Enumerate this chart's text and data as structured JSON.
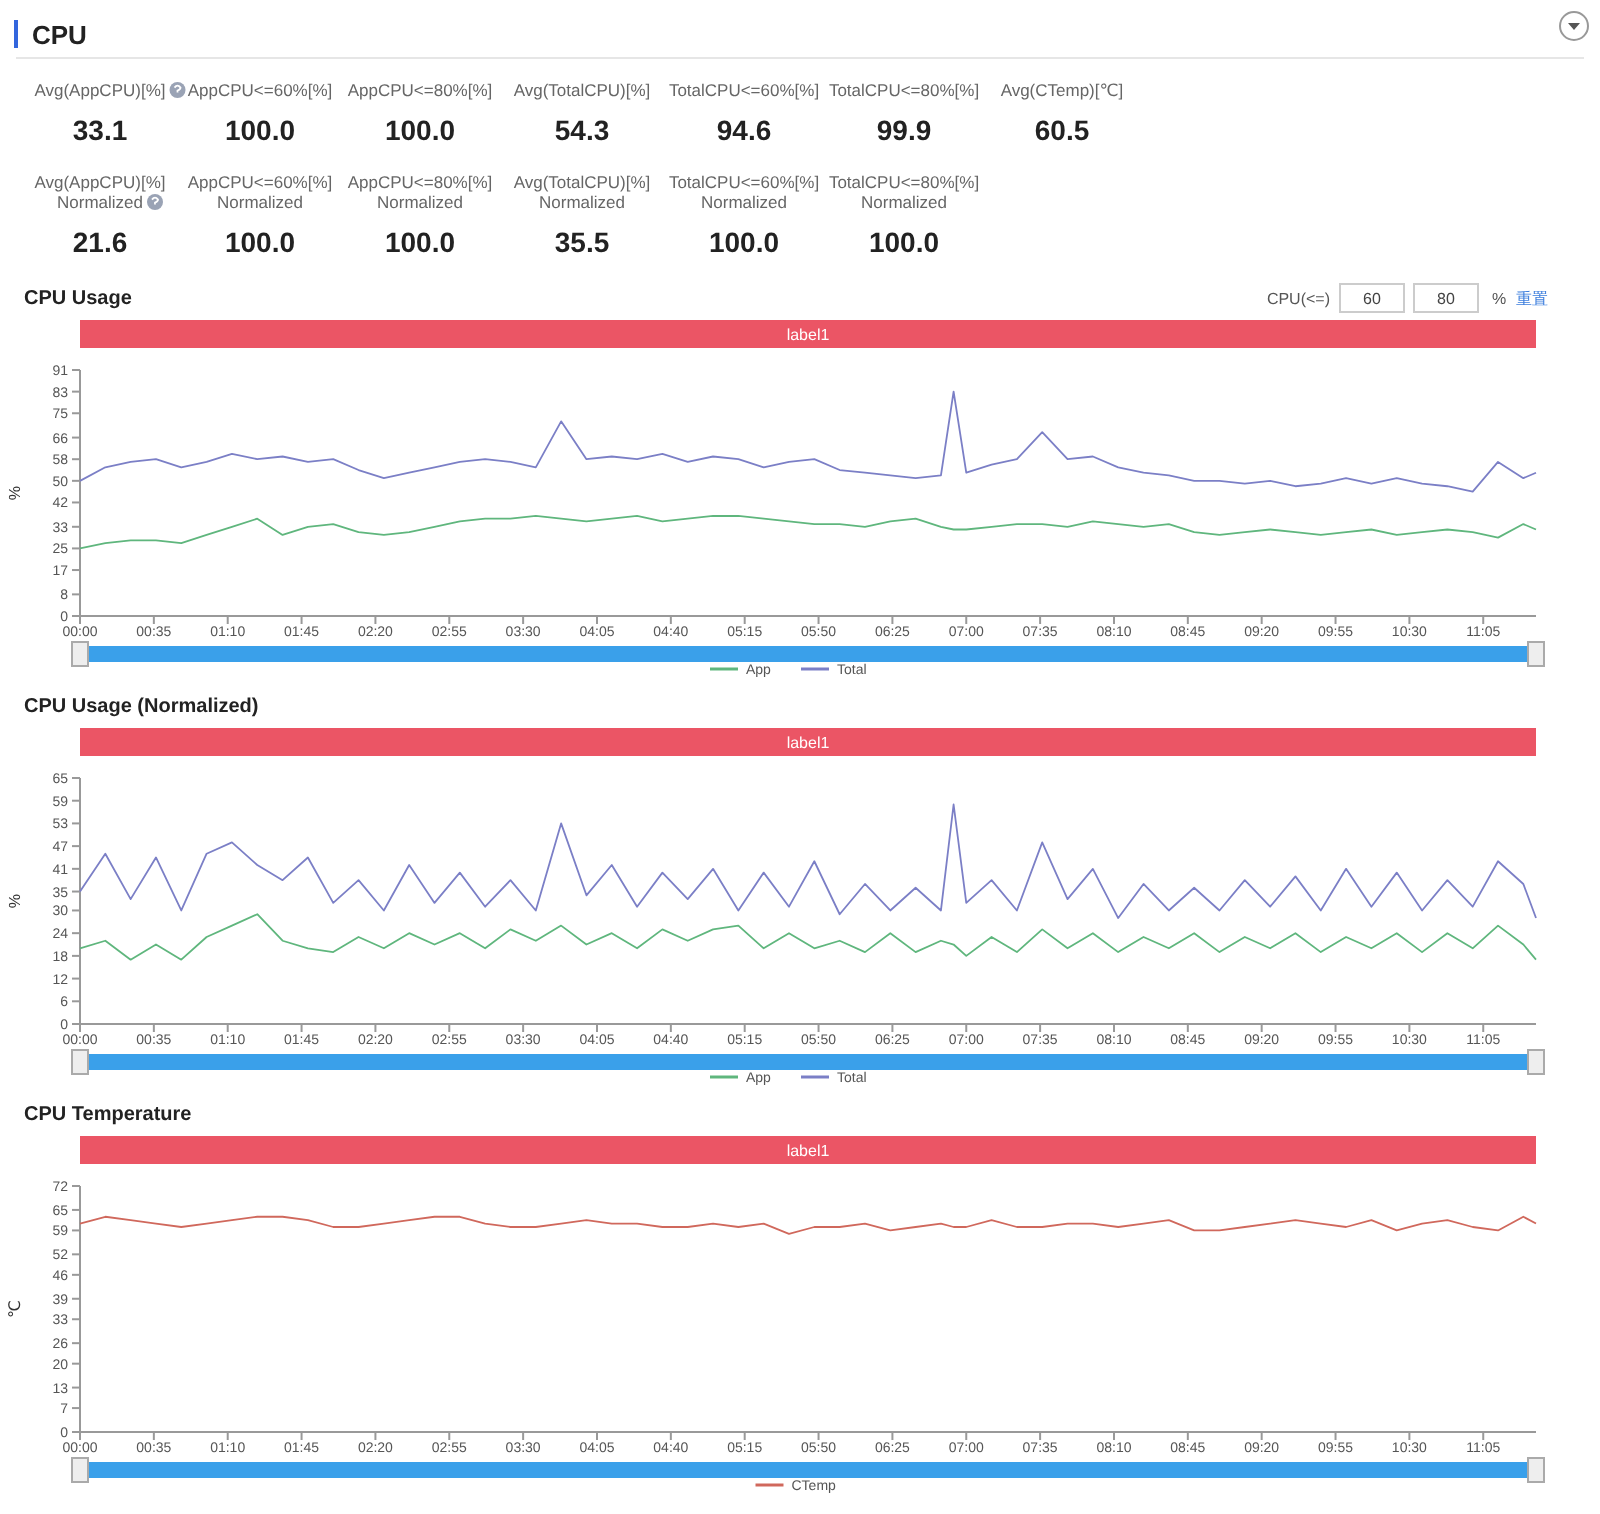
{
  "chart_data": [
    {
      "type": "other",
      "title": "CPU",
      "annotations": [
        "Avg(AppCPU)[%]",
        "33.1",
        "AppCPU<=60%[%]",
        "100.0",
        "AppCPU<=80%[%]",
        "100.0",
        "Avg(TotalCPU)[%]",
        "54.3",
        "TotalCPU<=60%[%]",
        "94.6",
        "TotalCPU<=80%[%]",
        "99.9",
        "Avg(CTemp)[℃]",
        "60.5",
        "Avg(AppCPU)[%]\nNormalized",
        "21.6",
        "AppCPU<=60%[%]\nNormalized",
        "100.0",
        "AppCPU<=80%[%]\nNormalized",
        "100.0",
        "Avg(TotalCPU)[%]\nNormalized",
        "35.5",
        "TotalCPU<=60%[%]\nNormalized",
        "100.0",
        "TotalCPU<=80%[%]\nNormalized",
        "100.0"
      ]
    },
    {
      "type": "line",
      "title": "CPU Usage",
      "ylabel": "%",
      "legend": "bottom",
      "annotations": [
        "label1",
        "CPU(<=)",
        "60",
        "80",
        "%",
        "重置"
      ],
      "xlim": [
        0,
        11.5
      ],
      "xticks": [
        {
          "value": 0,
          "label": "00:00"
        },
        {
          "value": 0.5833,
          "label": "00:35"
        },
        {
          "value": 1.1667,
          "label": "01:10"
        },
        {
          "value": 1.75,
          "label": "01:45"
        },
        {
          "value": 2.3333,
          "label": "02:20"
        },
        {
          "value": 2.9167,
          "label": "02:55"
        },
        {
          "value": 3.5,
          "label": "03:30"
        },
        {
          "value": 4.0833,
          "label": "04:05"
        },
        {
          "value": 4.6667,
          "label": "04:40"
        },
        {
          "value": 5.25,
          "label": "05:15"
        },
        {
          "value": 5.8333,
          "label": "05:50"
        },
        {
          "value": 6.4167,
          "label": "06:25"
        },
        {
          "value": 7,
          "label": "07:00"
        },
        {
          "value": 7.5833,
          "label": "07:35"
        },
        {
          "value": 8.1667,
          "label": "08:10"
        },
        {
          "value": 8.75,
          "label": "08:45"
        },
        {
          "value": 9.3333,
          "label": "09:20"
        },
        {
          "value": 9.9167,
          "label": "09:55"
        },
        {
          "value": 10.5,
          "label": "10:30"
        },
        {
          "value": 11.0833,
          "label": "11:05"
        }
      ],
      "ylim": [
        0,
        91
      ],
      "yticks": [
        0,
        8,
        17,
        25,
        33,
        42,
        50,
        58,
        66,
        75,
        83,
        91
      ],
      "x": [
        0,
        0.2,
        0.4,
        0.6,
        0.8,
        1,
        1.2,
        1.4,
        1.6,
        1.8,
        2,
        2.2,
        2.4,
        2.6,
        2.8,
        3,
        3.2,
        3.4,
        3.6,
        3.8,
        4,
        4.2,
        4.4,
        4.6,
        4.8,
        5,
        5.2,
        5.4,
        5.6,
        5.8,
        6,
        6.2,
        6.4,
        6.6,
        6.8,
        6.9,
        7,
        7.2,
        7.4,
        7.6,
        7.8,
        8,
        8.2,
        8.4,
        8.6,
        8.8,
        9,
        9.2,
        9.4,
        9.6,
        9.8,
        10,
        10.2,
        10.4,
        10.6,
        10.8,
        11,
        11.2,
        11.4,
        11.5
      ],
      "series": [
        {
          "name": "App",
          "color": "#5fb67d",
          "values": [
            25,
            27,
            28,
            28,
            27,
            30,
            33,
            36,
            30,
            33,
            34,
            31,
            30,
            31,
            33,
            35,
            36,
            36,
            37,
            36,
            35,
            36,
            37,
            35,
            36,
            37,
            37,
            36,
            35,
            34,
            34,
            33,
            35,
            36,
            33,
            32,
            32,
            33,
            34,
            34,
            33,
            35,
            34,
            33,
            34,
            31,
            30,
            31,
            32,
            31,
            30,
            31,
            32,
            30,
            31,
            32,
            31,
            29,
            34,
            32
          ]
        },
        {
          "name": "Total",
          "color": "#7b7fc6",
          "values": [
            50,
            55,
            57,
            58,
            55,
            57,
            60,
            58,
            59,
            57,
            58,
            54,
            51,
            53,
            55,
            57,
            58,
            57,
            55,
            72,
            58,
            59,
            58,
            60,
            57,
            59,
            58,
            55,
            57,
            58,
            54,
            53,
            52,
            51,
            52,
            83,
            53,
            56,
            58,
            68,
            58,
            59,
            55,
            53,
            52,
            50,
            50,
            49,
            50,
            48,
            49,
            51,
            49,
            51,
            49,
            48,
            46,
            57,
            51,
            53
          ]
        }
      ]
    },
    {
      "type": "line",
      "title": "CPU Usage (Normalized)",
      "ylabel": "%",
      "legend": "bottom",
      "annotations": [
        "label1"
      ],
      "xlim": [
        0,
        11.5
      ],
      "xticks": [
        {
          "value": 0,
          "label": "00:00"
        },
        {
          "value": 0.5833,
          "label": "00:35"
        },
        {
          "value": 1.1667,
          "label": "01:10"
        },
        {
          "value": 1.75,
          "label": "01:45"
        },
        {
          "value": 2.3333,
          "label": "02:20"
        },
        {
          "value": 2.9167,
          "label": "02:55"
        },
        {
          "value": 3.5,
          "label": "03:30"
        },
        {
          "value": 4.0833,
          "label": "04:05"
        },
        {
          "value": 4.6667,
          "label": "04:40"
        },
        {
          "value": 5.25,
          "label": "05:15"
        },
        {
          "value": 5.8333,
          "label": "05:50"
        },
        {
          "value": 6.4167,
          "label": "06:25"
        },
        {
          "value": 7,
          "label": "07:00"
        },
        {
          "value": 7.5833,
          "label": "07:35"
        },
        {
          "value": 8.1667,
          "label": "08:10"
        },
        {
          "value": 8.75,
          "label": "08:45"
        },
        {
          "value": 9.3333,
          "label": "09:20"
        },
        {
          "value": 9.9167,
          "label": "09:55"
        },
        {
          "value": 10.5,
          "label": "10:30"
        },
        {
          "value": 11.0833,
          "label": "11:05"
        }
      ],
      "ylim": [
        0,
        65
      ],
      "yticks": [
        0,
        6,
        12,
        18,
        24,
        30,
        35,
        41,
        47,
        53,
        59,
        65
      ],
      "x": [
        0,
        0.2,
        0.4,
        0.6,
        0.8,
        1,
        1.2,
        1.4,
        1.6,
        1.8,
        2,
        2.2,
        2.4,
        2.6,
        2.8,
        3,
        3.2,
        3.4,
        3.6,
        3.8,
        4,
        4.2,
        4.4,
        4.6,
        4.8,
        5,
        5.2,
        5.4,
        5.6,
        5.8,
        6,
        6.2,
        6.4,
        6.6,
        6.8,
        6.9,
        7,
        7.2,
        7.4,
        7.6,
        7.8,
        8,
        8.2,
        8.4,
        8.6,
        8.8,
        9,
        9.2,
        9.4,
        9.6,
        9.8,
        10,
        10.2,
        10.4,
        10.6,
        10.8,
        11,
        11.2,
        11.4,
        11.5
      ],
      "series": [
        {
          "name": "App",
          "color": "#5fb67d",
          "values": [
            20,
            22,
            17,
            21,
            17,
            23,
            26,
            29,
            22,
            20,
            19,
            23,
            20,
            24,
            21,
            24,
            20,
            25,
            22,
            26,
            21,
            24,
            20,
            25,
            22,
            25,
            26,
            20,
            24,
            20,
            22,
            19,
            24,
            19,
            22,
            21,
            18,
            23,
            19,
            25,
            20,
            24,
            19,
            23,
            20,
            24,
            19,
            23,
            20,
            24,
            19,
            23,
            20,
            24,
            19,
            24,
            20,
            26,
            21,
            17
          ]
        },
        {
          "name": "Total",
          "color": "#7b7fc6",
          "values": [
            35,
            45,
            33,
            44,
            30,
            45,
            48,
            42,
            38,
            44,
            32,
            38,
            30,
            42,
            32,
            40,
            31,
            38,
            30,
            53,
            34,
            42,
            31,
            40,
            33,
            41,
            30,
            40,
            31,
            43,
            29,
            37,
            30,
            36,
            30,
            58,
            32,
            38,
            30,
            48,
            33,
            41,
            28,
            37,
            30,
            36,
            30,
            38,
            31,
            39,
            30,
            41,
            31,
            40,
            30,
            38,
            31,
            43,
            37,
            28
          ]
        }
      ]
    },
    {
      "type": "line",
      "title": "CPU Temperature",
      "ylabel": "℃",
      "legend": "bottom",
      "annotations": [
        "label1"
      ],
      "xlim": [
        0,
        11.5
      ],
      "xticks": [
        {
          "value": 0,
          "label": "00:00"
        },
        {
          "value": 0.5833,
          "label": "00:35"
        },
        {
          "value": 1.1667,
          "label": "01:10"
        },
        {
          "value": 1.75,
          "label": "01:45"
        },
        {
          "value": 2.3333,
          "label": "02:20"
        },
        {
          "value": 2.9167,
          "label": "02:55"
        },
        {
          "value": 3.5,
          "label": "03:30"
        },
        {
          "value": 4.0833,
          "label": "04:05"
        },
        {
          "value": 4.6667,
          "label": "04:40"
        },
        {
          "value": 5.25,
          "label": "05:15"
        },
        {
          "value": 5.8333,
          "label": "05:50"
        },
        {
          "value": 6.4167,
          "label": "06:25"
        },
        {
          "value": 7,
          "label": "07:00"
        },
        {
          "value": 7.5833,
          "label": "07:35"
        },
        {
          "value": 8.1667,
          "label": "08:10"
        },
        {
          "value": 8.75,
          "label": "08:45"
        },
        {
          "value": 9.3333,
          "label": "09:20"
        },
        {
          "value": 9.9167,
          "label": "09:55"
        },
        {
          "value": 10.5,
          "label": "10:30"
        },
        {
          "value": 11.0833,
          "label": "11:05"
        }
      ],
      "ylim": [
        0,
        72
      ],
      "yticks": [
        0,
        7,
        13,
        20,
        26,
        33,
        39,
        46,
        52,
        59,
        65,
        72
      ],
      "x": [
        0,
        0.2,
        0.4,
        0.6,
        0.8,
        1,
        1.2,
        1.4,
        1.6,
        1.8,
        2,
        2.2,
        2.4,
        2.6,
        2.8,
        3,
        3.2,
        3.4,
        3.6,
        3.8,
        4,
        4.2,
        4.4,
        4.6,
        4.8,
        5,
        5.2,
        5.4,
        5.6,
        5.8,
        6,
        6.2,
        6.4,
        6.6,
        6.8,
        6.9,
        7,
        7.2,
        7.4,
        7.6,
        7.8,
        8,
        8.2,
        8.4,
        8.6,
        8.8,
        9,
        9.2,
        9.4,
        9.6,
        9.8,
        10,
        10.2,
        10.4,
        10.6,
        10.8,
        11,
        11.2,
        11.4,
        11.5
      ],
      "series": [
        {
          "name": "CTemp",
          "color": "#d0685c",
          "values": [
            61,
            63,
            62,
            61,
            60,
            61,
            62,
            63,
            63,
            62,
            60,
            60,
            61,
            62,
            63,
            63,
            61,
            60,
            60,
            61,
            62,
            61,
            61,
            60,
            60,
            61,
            60,
            61,
            58,
            60,
            60,
            61,
            59,
            60,
            61,
            60,
            60,
            62,
            60,
            60,
            61,
            61,
            60,
            61,
            62,
            59,
            59,
            60,
            61,
            62,
            61,
            60,
            62,
            59,
            61,
            62,
            60,
            59,
            63,
            61
          ]
        }
      ]
    }
  ]
}
